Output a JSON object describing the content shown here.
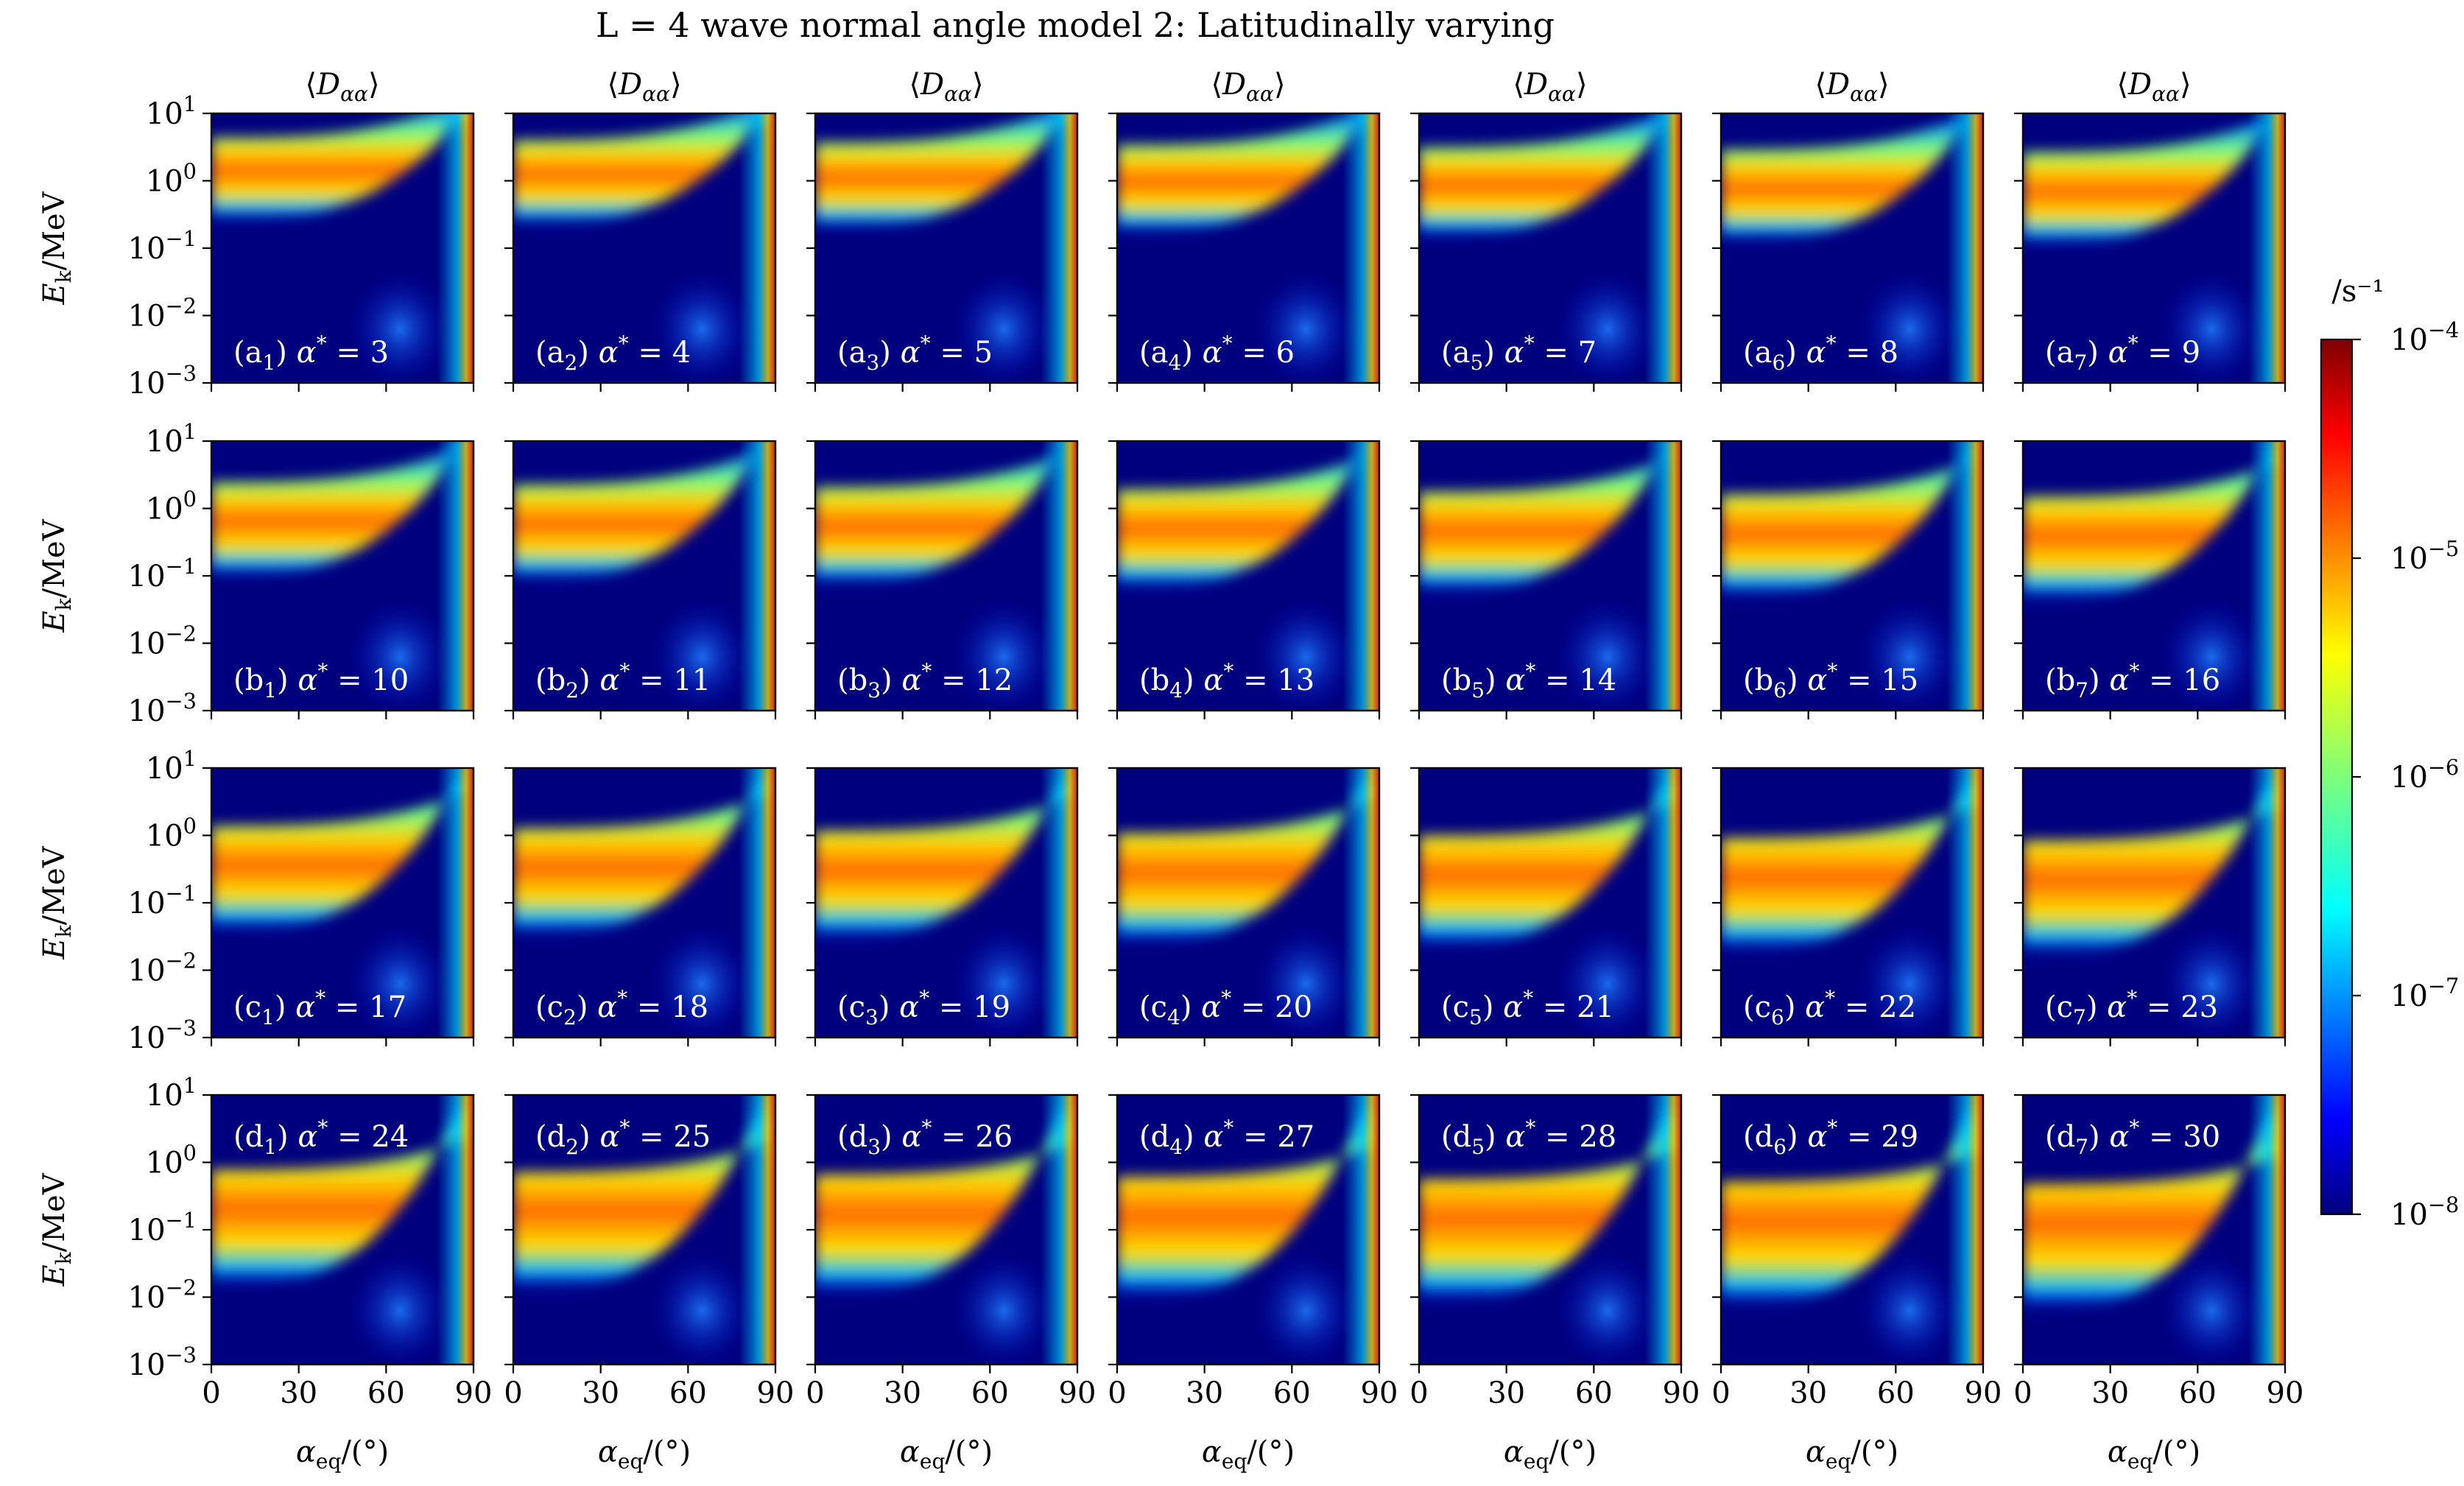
{
  "chart_data": {
    "type": "heatmap",
    "title": "L = 4 wave normal angle model 2: Latitudinally varying",
    "column_title": "⟨Dαα⟩",
    "xlabel": "αeq/(°)",
    "ylabel": "Ek/MeV",
    "xlim": [
      0,
      90
    ],
    "ylim": [
      0.001,
      10
    ],
    "y_scale": "log",
    "x_ticks": [
      "0",
      "30",
      "60",
      "90"
    ],
    "y_ticks": [
      {
        "base": "10",
        "exp": "1"
      },
      {
        "base": "10",
        "exp": "0"
      },
      {
        "base": "10",
        "exp": "−1"
      },
      {
        "base": "10",
        "exp": "−2"
      },
      {
        "base": "10",
        "exp": "−3"
      }
    ],
    "colorbar": {
      "unit": "/s⁻¹",
      "scale": "log",
      "range": [
        1e-08,
        0.0001
      ],
      "colormap": "jet",
      "ticks": [
        {
          "base": "10",
          "exp": "−4"
        },
        {
          "base": "10",
          "exp": "−5"
        },
        {
          "base": "10",
          "exp": "−6"
        },
        {
          "base": "10",
          "exp": "−7"
        },
        {
          "base": "10",
          "exp": "−8"
        }
      ]
    },
    "rows": [
      {
        "letter": "a",
        "label_position": "bottom",
        "alpha_star": [
          3,
          4,
          5,
          6,
          7,
          8,
          9
        ]
      },
      {
        "letter": "b",
        "label_position": "bottom",
        "alpha_star": [
          10,
          11,
          12,
          13,
          14,
          15,
          16
        ]
      },
      {
        "letter": "c",
        "label_position": "bottom",
        "alpha_star": [
          17,
          18,
          19,
          20,
          21,
          22,
          23
        ]
      },
      {
        "letter": "d",
        "label_position": "top",
        "alpha_star": [
          24,
          25,
          26,
          27,
          28,
          29,
          30
        ]
      }
    ],
    "panel_label_template": "({letter}{index}) α* = {value}",
    "colors": {
      "low": "#00007f",
      "high": "#7f0000"
    }
  }
}
